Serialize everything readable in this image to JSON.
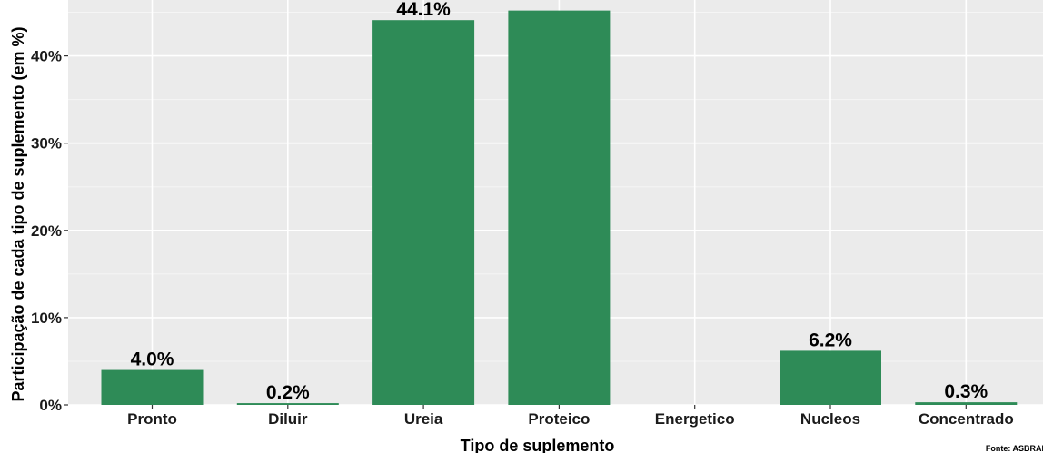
{
  "chart_data": {
    "type": "bar",
    "categories": [
      "Pronto",
      "Diluir",
      "Ureia",
      "Proteico",
      "Energetico",
      "Nucleos",
      "Concentrado"
    ],
    "values": [
      4.0,
      0.2,
      44.1,
      45.2,
      0.0,
      6.2,
      0.3
    ],
    "data_labels": [
      "4.0%",
      "0.2%",
      "44.1%",
      "",
      "",
      "6.2%",
      "0.3%"
    ],
    "xlabel": "Tipo de suplemento",
    "ylabel": "Participação de cada tipo de suplemento (em %)",
    "ylim": [
      0,
      45
    ],
    "yticks": [
      0,
      10,
      20,
      30,
      40
    ],
    "ytick_labels": [
      "0%",
      "10%",
      "20%",
      "30%",
      "40%"
    ],
    "grid": true,
    "colors": {
      "bar": "#2e8b57",
      "panel": "#ebebeb",
      "grid_major": "#ffffff",
      "grid_minor": "#f5f5f5"
    }
  },
  "source": "Fonte: ASBRAM"
}
